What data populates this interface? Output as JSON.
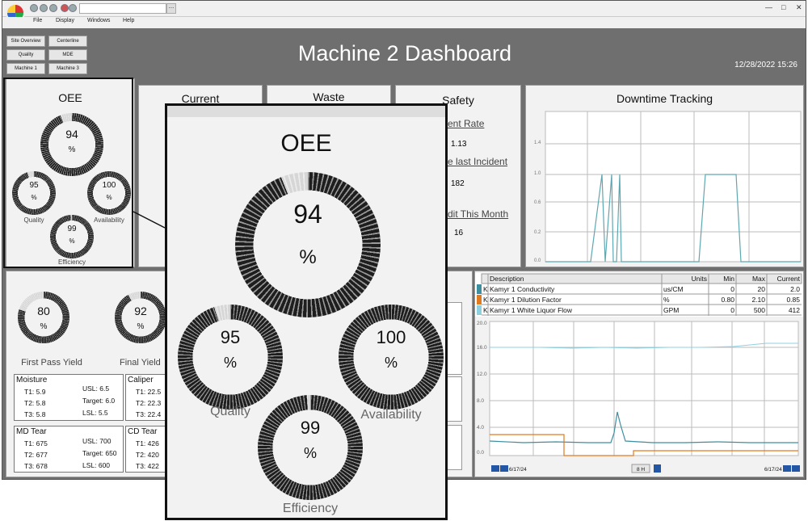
{
  "menu": {
    "file": "File",
    "display": "Display",
    "windows": "Windows",
    "help": "Help"
  },
  "nav": [
    "Site Overview",
    "Centerline",
    "Quality",
    "MDE",
    "Machine 1",
    "Machine 3"
  ],
  "header": {
    "title": "Machine 2 Dashboard",
    "datetime": "12/28/2022 15:26"
  },
  "oee_panel": {
    "title": "OEE",
    "oee": {
      "value": "94",
      "unit": "%",
      "fraction": 0.94
    },
    "quality": {
      "value": "95",
      "unit": "%",
      "label": "Quality",
      "fraction": 0.95
    },
    "availability": {
      "value": "100",
      "unit": "%",
      "label": "Availability",
      "fraction": 1.0
    },
    "efficiency": {
      "value": "99",
      "unit": "%",
      "label": "Efficiency",
      "fraction": 0.99
    }
  },
  "current_panel": {
    "title": "Current"
  },
  "waste_panel": {
    "title": "Waste"
  },
  "safety_panel": {
    "title": "Safety",
    "incident_rate_label": "ent Rate",
    "incident_rate": "1.13",
    "last_incident_label": "e last Incident",
    "last_incident": "182",
    "audit_label": "dit This Month",
    "audit": "16"
  },
  "downtime": {
    "title": "Downtime Tracking",
    "yticks": [
      "1.4",
      "1.0",
      "0.6",
      "0.2",
      "0.0"
    ]
  },
  "yield": {
    "fpy": {
      "value": "80",
      "unit": "%",
      "label": "First Pass Yield",
      "fraction": 0.8
    },
    "final": {
      "value": "92",
      "unit": "%",
      "label": "Final Yield",
      "fraction": 0.92
    }
  },
  "moisture": {
    "title": "Moisture",
    "t1": "T1: 5.9",
    "t2": "T2: 5.8",
    "t3": "T3: 5.8",
    "usl": "USL: 6.5",
    "target": "Target: 6.0",
    "lsl": "LSL: 5.5"
  },
  "caliper": {
    "title": "Caliper",
    "t1": "T1: 22.5",
    "t2": "T2: 22.3",
    "t3": "T3: 22.4"
  },
  "md_tear": {
    "title": "MD Tear",
    "t1": "T1: 675",
    "t2": "T2: 677",
    "t3": "T3: 678",
    "usl": "USL: 700",
    "target": "Target: 650",
    "lsl": "LSL: 600"
  },
  "cd_tear": {
    "title": "CD Tear",
    "t1": "T1: 426",
    "t2": "T2: 420",
    "t3": "T3: 422"
  },
  "trend": {
    "headers": [
      "Description",
      "Units",
      "Min",
      "Max",
      "Current"
    ],
    "rows": [
      {
        "k": "K",
        "color": "#3d8fa0",
        "desc": "Kamyr 1 Conductivity",
        "units": "us/CM",
        "min": "0",
        "max": "20",
        "current": "2.0"
      },
      {
        "k": "K",
        "color": "#e07a1f",
        "desc": "Kamyr 1 Dilution Factor",
        "units": "%",
        "min": "0.80",
        "max": "2.10",
        "current": "0.85"
      },
      {
        "k": "K",
        "color": "#8fd0e0",
        "desc": "Kamyr 1 White Liquor Flow",
        "units": "GPM",
        "min": "0",
        "max": "500",
        "current": "412"
      }
    ],
    "yticks": [
      "20.0",
      "16.0",
      "12.0",
      "8.0",
      "4.0",
      "0.0"
    ],
    "start_date": "6/17/24",
    "end_date": "6/17/24",
    "range": "8 H"
  }
}
